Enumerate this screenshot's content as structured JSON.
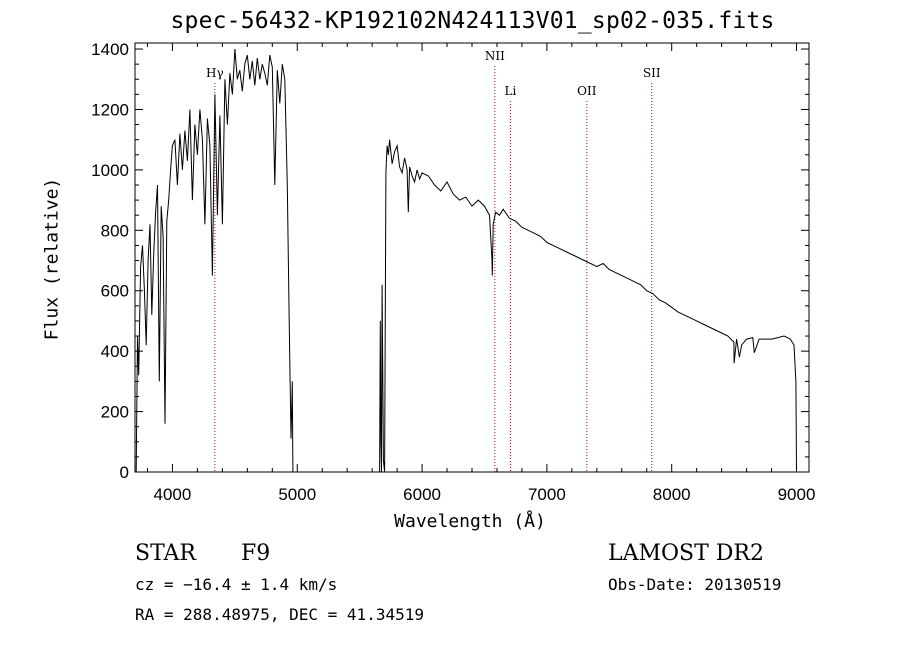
{
  "title": "spec-56432-KP192102N424113V01_sp02-035.fits",
  "info": {
    "class_label": "STAR",
    "subclass": "F9",
    "survey": "LAMOST DR2",
    "cz": "cz = −16.4 ± 1.4 km/s",
    "obs_date": "Obs-Date: 20130519",
    "coords": "RA = 288.48975, DEC =  41.34519"
  },
  "chart_data": {
    "type": "line",
    "title": "spec-56432-KP192102N424113V01_sp02-035.fits",
    "xlabel": "Wavelength (Å)",
    "ylabel": "Flux (relative)",
    "xlim": [
      3700,
      9100
    ],
    "ylim": [
      0,
      1420
    ],
    "xticks": [
      4000,
      5000,
      6000,
      7000,
      8000,
      9000
    ],
    "yticks": [
      0,
      200,
      400,
      600,
      800,
      1000,
      1200,
      1400
    ],
    "grid": false,
    "colors": {
      "spectrum": "#000000",
      "lines": "#8b1a1a",
      "axes": "#000000"
    },
    "spectral_lines": [
      {
        "label": "Hγ",
        "wavelength": 4340
      },
      {
        "label": "NII",
        "wavelength": 6583
      },
      {
        "label": "Li",
        "wavelength": 6708
      },
      {
        "label": "OII",
        "wavelength": 7320
      },
      {
        "label": "SII",
        "wavelength": 7840
      }
    ],
    "series": [
      {
        "x": [
          3710,
          3720,
          3730,
          3745,
          3760,
          3775,
          3790,
          3805,
          3820,
          3835,
          3850,
          3865,
          3880,
          3895,
          3910,
          3925,
          3940,
          3955,
          3970,
          3985,
          4000,
          4020,
          4040,
          4060,
          4080,
          4100,
          4120,
          4140,
          4160,
          4180,
          4200,
          4220,
          4240,
          4260,
          4280,
          4300,
          4320,
          4340,
          4360,
          4380,
          4400,
          4420,
          4440,
          4460,
          4480,
          4500,
          4520,
          4540,
          4560,
          4580,
          4600,
          4620,
          4640,
          4660,
          4680,
          4700,
          4720,
          4740,
          4760,
          4780,
          4800,
          4820,
          4840,
          4860,
          4880,
          4900,
          4920,
          4935,
          4950,
          4960,
          4965,
          5660,
          5665,
          5670,
          5675,
          5680,
          5690,
          5700,
          5710,
          5720,
          5730,
          5740,
          5760,
          5780,
          5800,
          5820,
          5840,
          5860,
          5880,
          5890,
          5900,
          5920,
          5940,
          5960,
          5980,
          6000,
          6050,
          6100,
          6150,
          6200,
          6250,
          6300,
          6350,
          6400,
          6450,
          6500,
          6540,
          6560,
          6563,
          6570,
          6590,
          6620,
          6650,
          6700,
          6750,
          6800,
          6850,
          6900,
          6950,
          7000,
          7050,
          7100,
          7150,
          7200,
          7250,
          7300,
          7350,
          7400,
          7450,
          7500,
          7550,
          7600,
          7650,
          7700,
          7750,
          7800,
          7850,
          7900,
          7950,
          8000,
          8050,
          8100,
          8150,
          8200,
          8250,
          8300,
          8350,
          8400,
          8450,
          8498,
          8500,
          8520,
          8542,
          8560,
          8600,
          8650,
          8662,
          8700,
          8750,
          8800,
          8850,
          8900,
          8950,
          8980,
          8995,
          9000
        ],
        "y": [
          0,
          450,
          320,
          680,
          750,
          600,
          420,
          700,
          820,
          520,
          720,
          860,
          950,
          300,
          880,
          780,
          160,
          830,
          900,
          1000,
          1080,
          1100,
          950,
          1120,
          1000,
          1130,
          1030,
          1200,
          900,
          1150,
          1050,
          1200,
          1100,
          820,
          1170,
          1080,
          650,
          1250,
          850,
          1180,
          820,
          1300,
          1150,
          1320,
          1250,
          1400,
          1300,
          1330,
          1260,
          1350,
          1380,
          1300,
          1360,
          1280,
          1370,
          1300,
          1350,
          1320,
          1280,
          1380,
          1340,
          950,
          1330,
          1220,
          1350,
          1300,
          950,
          520,
          110,
          300,
          0,
          0,
          500,
          100,
          0,
          620,
          40,
          0,
          990,
          1080,
          1050,
          1100,
          1020,
          1060,
          1080,
          1010,
          990,
          1040,
          1000,
          860,
          1010,
          980,
          960,
          1000,
          970,
          990,
          980,
          950,
          930,
          960,
          920,
          900,
          910,
          880,
          900,
          880,
          850,
          700,
          650,
          820,
          860,
          850,
          870,
          840,
          830,
          810,
          800,
          790,
          780,
          760,
          750,
          740,
          730,
          720,
          710,
          700,
          690,
          680,
          690,
          670,
          660,
          650,
          640,
          630,
          620,
          600,
          590,
          570,
          560,
          545,
          530,
          520,
          510,
          500,
          490,
          480,
          470,
          460,
          450,
          430,
          360,
          440,
          380,
          420,
          440,
          445,
          395,
          440,
          440,
          440,
          445,
          450,
          440,
          420,
          300,
          0
        ]
      }
    ]
  }
}
